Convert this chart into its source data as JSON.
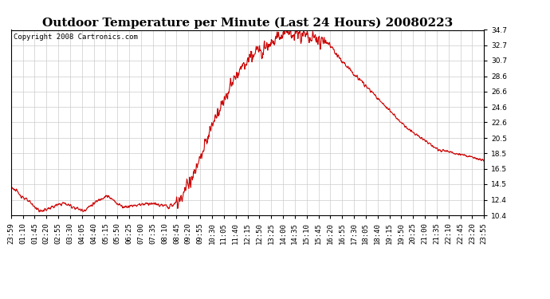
{
  "title": "Outdoor Temperature per Minute (Last 24 Hours) 20080223",
  "copyright": "Copyright 2008 Cartronics.com",
  "line_color": "#cc0000",
  "bg_color": "#ffffff",
  "plot_bg_color": "#ffffff",
  "grid_color": "#cccccc",
  "ylim": [
    10.4,
    34.7
  ],
  "yticks": [
    10.4,
    12.4,
    14.5,
    16.5,
    18.5,
    20.5,
    22.6,
    24.6,
    26.6,
    28.6,
    30.7,
    32.7,
    34.7
  ],
  "xtick_labels": [
    "23:59",
    "01:10",
    "01:45",
    "02:20",
    "02:55",
    "03:30",
    "04:05",
    "04:40",
    "05:15",
    "05:50",
    "06:25",
    "07:00",
    "07:35",
    "08:10",
    "08:45",
    "09:20",
    "09:55",
    "10:30",
    "11:05",
    "11:40",
    "12:15",
    "12:50",
    "13:25",
    "14:00",
    "14:35",
    "15:10",
    "15:45",
    "16:20",
    "16:55",
    "17:30",
    "18:05",
    "18:40",
    "19:15",
    "19:50",
    "20:25",
    "21:00",
    "21:35",
    "22:10",
    "22:45",
    "23:20",
    "23:55"
  ],
  "line_width": 0.8,
  "title_fontsize": 11,
  "tick_fontsize": 6.5,
  "copyright_fontsize": 6.5
}
